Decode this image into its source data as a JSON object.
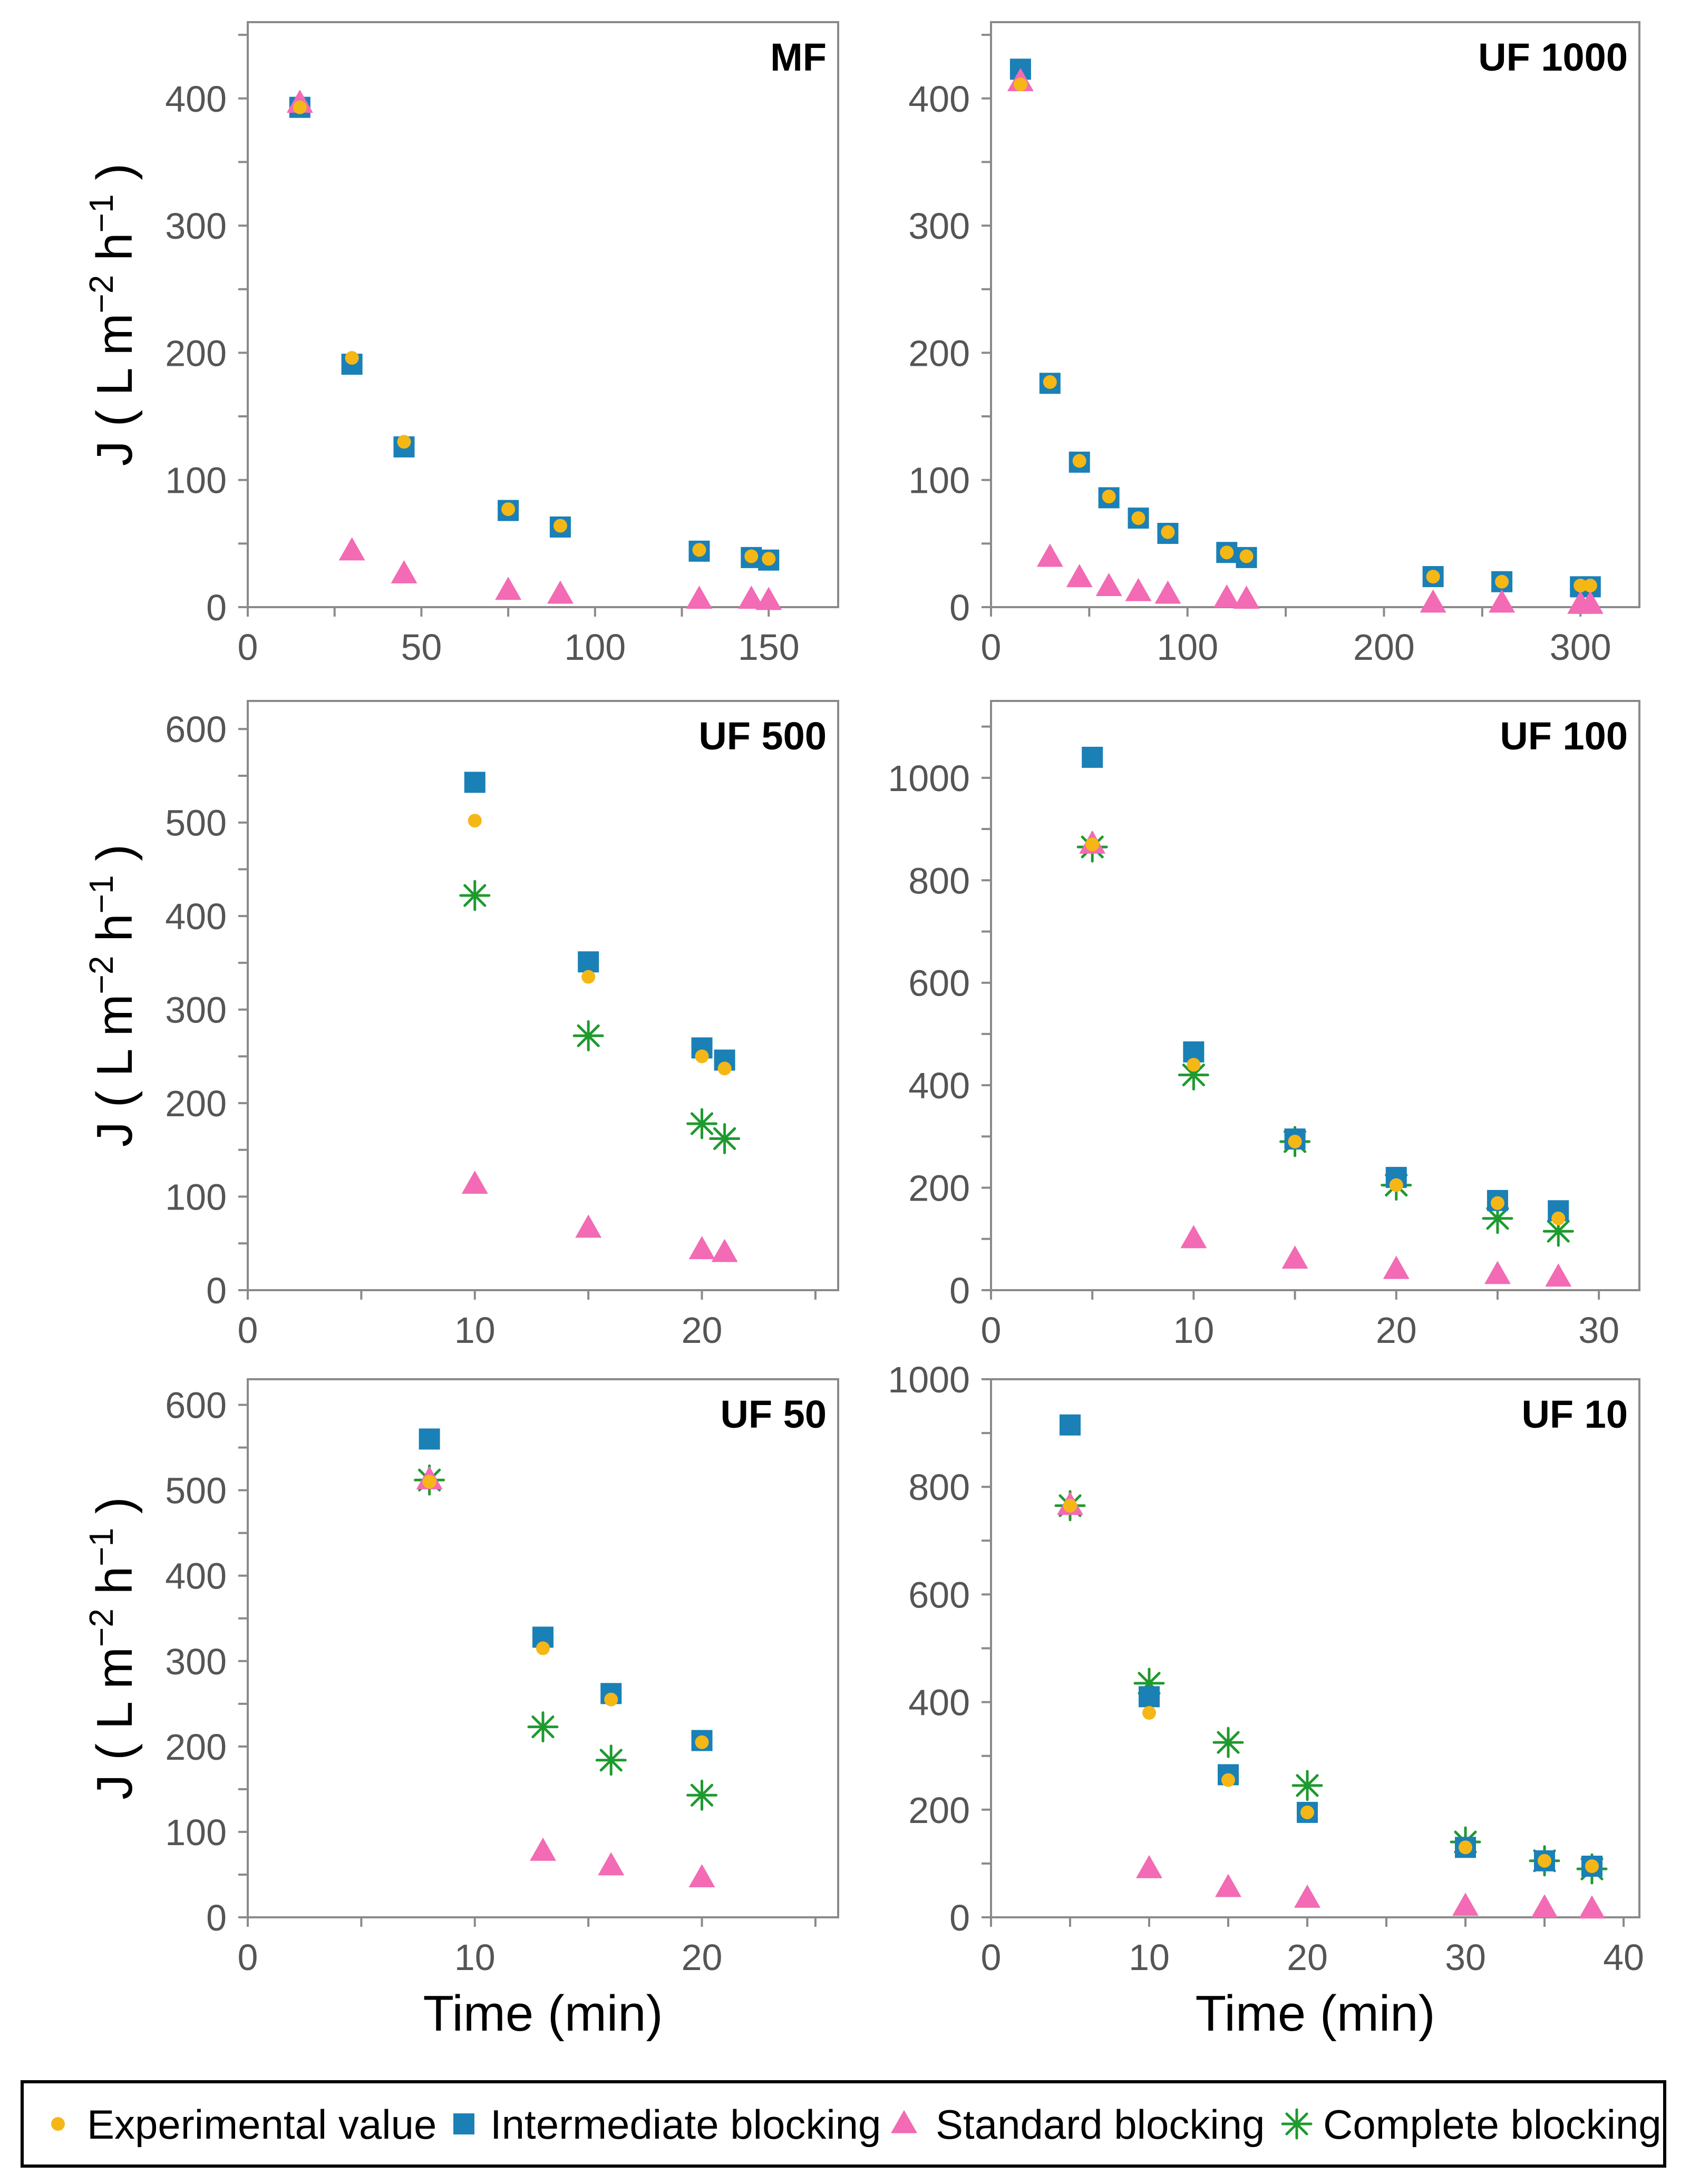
{
  "colors": {
    "experimental": "#F5B716",
    "intermediate": "#1A80B6",
    "standard": "#F26BB4",
    "complete": "#1E9A2E",
    "axis": "#8A8A8A",
    "tick_text": "#555555"
  },
  "legend": {
    "experimental": "Experimental value",
    "intermediate": "Intermediate blocking",
    "standard": "Standard blocking",
    "complete": "Complete blocking"
  },
  "chart_data": [
    {
      "type": "scatter",
      "title": "MF",
      "xlabel": "",
      "ylabel": "J ( L m−2 h−1 )",
      "xlim": [
        0,
        170
      ],
      "ylim": [
        0,
        460
      ],
      "xticks": [
        0,
        50,
        100,
        150
      ],
      "yticks": [
        0,
        100,
        200,
        300,
        400
      ],
      "x_minor_step": 25,
      "y_minor_step": 50,
      "series": [
        {
          "name": "Experimental value",
          "key": "experimental",
          "x": [
            15,
            30,
            45,
            75,
            90,
            130,
            145,
            150
          ],
          "y": [
            393,
            196,
            130,
            77,
            64,
            45,
            40,
            38
          ]
        },
        {
          "name": "Intermediate blocking",
          "key": "intermediate",
          "x": [
            15,
            30,
            45,
            75,
            90,
            130,
            145,
            150
          ],
          "y": [
            393,
            191,
            126,
            76,
            63,
            44,
            39,
            37
          ]
        },
        {
          "name": "Standard blocking",
          "key": "standard",
          "x": [
            15,
            30,
            45,
            75,
            90,
            130,
            145,
            150
          ],
          "y": [
            396,
            44,
            26,
            13,
            10,
            6,
            6,
            5
          ]
        }
      ]
    },
    {
      "type": "scatter",
      "title": "UF 1000",
      "xlabel": "",
      "ylabel": "",
      "xlim": [
        0,
        330
      ],
      "ylim": [
        0,
        460
      ],
      "xticks": [
        0,
        100,
        200,
        300
      ],
      "yticks": [
        0,
        100,
        200,
        300,
        400
      ],
      "x_minor_step": 50,
      "y_minor_step": 50,
      "series": [
        {
          "name": "Experimental value",
          "key": "experimental",
          "x": [
            15,
            30,
            45,
            60,
            75,
            90,
            120,
            130,
            225,
            260,
            300,
            305
          ],
          "y": [
            411,
            177,
            115,
            87,
            70,
            59,
            43,
            40,
            24,
            20,
            17,
            17
          ]
        },
        {
          "name": "Intermediate blocking",
          "key": "intermediate",
          "x": [
            15,
            30,
            45,
            60,
            75,
            90,
            120,
            130,
            225,
            260,
            300,
            305
          ],
          "y": [
            423,
            176,
            114,
            86,
            70,
            58,
            43,
            39,
            24,
            20,
            16,
            16
          ]
        },
        {
          "name": "Standard blocking",
          "key": "standard",
          "x": [
            15,
            30,
            45,
            60,
            75,
            90,
            120,
            130,
            225,
            260,
            300,
            305
          ],
          "y": [
            413,
            39,
            23,
            16,
            12,
            10,
            7,
            6,
            3,
            3,
            2,
            2
          ]
        }
      ]
    },
    {
      "type": "scatter",
      "title": "UF 500",
      "xlabel": "",
      "ylabel": "J ( L m−2 h−1 )",
      "xlim": [
        0,
        26
      ],
      "ylim": [
        0,
        630
      ],
      "xticks": [
        0,
        10,
        20
      ],
      "yticks": [
        0,
        100,
        200,
        300,
        400,
        500,
        600
      ],
      "x_minor_step": 5,
      "y_minor_step": 50,
      "series": [
        {
          "name": "Experimental value",
          "key": "experimental",
          "x": [
            10,
            15,
            20,
            21
          ],
          "y": [
            502,
            335,
            250,
            237
          ]
        },
        {
          "name": "Intermediate blocking",
          "key": "intermediate",
          "x": [
            10,
            15,
            20,
            21
          ],
          "y": [
            543,
            351,
            259,
            246
          ]
        },
        {
          "name": "Standard blocking",
          "key": "standard",
          "x": [
            10,
            15,
            20,
            21
          ],
          "y": [
            113,
            66,
            43,
            40
          ]
        },
        {
          "name": "Complete blocking",
          "key": "complete",
          "x": [
            10,
            15,
            20,
            21
          ],
          "y": [
            422,
            272,
            178,
            162
          ]
        }
      ]
    },
    {
      "type": "scatter",
      "title": "UF 100",
      "xlabel": "",
      "ylabel": "",
      "xlim": [
        0,
        32
      ],
      "ylim": [
        0,
        1150
      ],
      "xticks": [
        0,
        10,
        20,
        30
      ],
      "yticks": [
        0,
        200,
        400,
        600,
        800,
        1000
      ],
      "x_minor_step": 5,
      "y_minor_step": 100,
      "series": [
        {
          "name": "Experimental value",
          "key": "experimental",
          "x": [
            5,
            10,
            15,
            20,
            25,
            28
          ],
          "y": [
            870,
            440,
            290,
            205,
            170,
            140
          ]
        },
        {
          "name": "Intermediate blocking",
          "key": "intermediate",
          "x": [
            5,
            10,
            15,
            20,
            25,
            28
          ],
          "y": [
            1040,
            465,
            295,
            220,
            175,
            155
          ]
        },
        {
          "name": "Standard blocking",
          "key": "standard",
          "x": [
            5,
            10,
            15,
            20,
            25,
            28
          ],
          "y": [
            870,
            100,
            60,
            40,
            30,
            25
          ]
        },
        {
          "name": "Complete blocking",
          "key": "complete",
          "x": [
            5,
            10,
            15,
            20,
            25,
            28
          ],
          "y": [
            865,
            420,
            290,
            205,
            140,
            115
          ]
        }
      ]
    },
    {
      "type": "scatter",
      "title": "UF 50",
      "xlabel": "Time (min)",
      "ylabel": "J ( L m−2 h−1 )",
      "xlim": [
        0,
        26
      ],
      "ylim": [
        0,
        630
      ],
      "xticks": [
        0,
        10,
        20
      ],
      "yticks": [
        0,
        100,
        200,
        300,
        400,
        500,
        600
      ],
      "x_minor_step": 5,
      "y_minor_step": 50,
      "series": [
        {
          "name": "Experimental value",
          "key": "experimental",
          "x": [
            8,
            13,
            16,
            20
          ],
          "y": [
            510,
            315,
            255,
            205
          ]
        },
        {
          "name": "Intermediate blocking",
          "key": "intermediate",
          "x": [
            8,
            13,
            16,
            20
          ],
          "y": [
            560,
            328,
            262,
            207
          ]
        },
        {
          "name": "Standard blocking",
          "key": "standard",
          "x": [
            8,
            13,
            16,
            20
          ],
          "y": [
            512,
            77,
            60,
            46
          ]
        },
        {
          "name": "Complete blocking",
          "key": "complete",
          "x": [
            8,
            13,
            16,
            20
          ],
          "y": [
            512,
            223,
            184,
            143
          ]
        }
      ]
    },
    {
      "type": "scatter",
      "title": "UF 10",
      "xlabel": "Time (min)",
      "ylabel": "",
      "xlim": [
        0,
        41
      ],
      "ylim": [
        0,
        1000
      ],
      "xticks": [
        0,
        10,
        20,
        30,
        40
      ],
      "yticks": [
        0,
        200,
        400,
        600,
        800,
        1000
      ],
      "x_minor_step": 5,
      "y_minor_step": 100,
      "series": [
        {
          "name": "Experimental value",
          "key": "experimental",
          "x": [
            5,
            10,
            15,
            20,
            30,
            35,
            38
          ],
          "y": [
            765,
            380,
            255,
            195,
            130,
            105,
            95
          ]
        },
        {
          "name": "Intermediate blocking",
          "key": "intermediate",
          "x": [
            5,
            10,
            15,
            20,
            30,
            35,
            38
          ],
          "y": [
            915,
            410,
            265,
            195,
            130,
            105,
            95
          ]
        },
        {
          "name": "Standard blocking",
          "key": "standard",
          "x": [
            5,
            10,
            15,
            20,
            30,
            35,
            38
          ],
          "y": [
            765,
            90,
            55,
            35,
            20,
            17,
            15
          ]
        },
        {
          "name": "Complete blocking",
          "key": "complete",
          "x": [
            5,
            10,
            15,
            20,
            30,
            35,
            38
          ],
          "y": [
            765,
            435,
            325,
            245,
            140,
            105,
            90
          ]
        }
      ]
    }
  ]
}
